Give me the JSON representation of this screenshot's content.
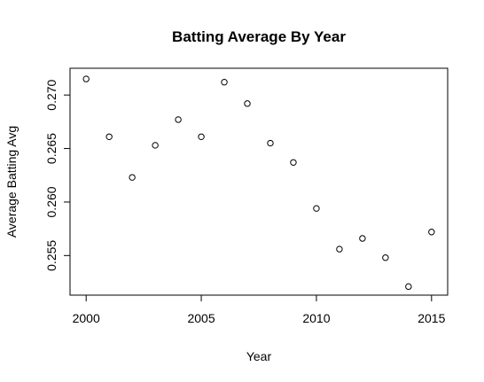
{
  "chart_data": {
    "type": "scatter",
    "title": "Batting Average By Year",
    "xlabel": "Year",
    "ylabel": "Average Batting Avg",
    "xlim": [
      1999.3,
      2015.7
    ],
    "ylim": [
      0.2513,
      0.2725
    ],
    "x_ticks": [
      2000,
      2005,
      2010,
      2015
    ],
    "x_tick_labels": [
      "2000",
      "2005",
      "2010",
      "2015"
    ],
    "y_ticks": [
      0.255,
      0.26,
      0.265,
      0.27
    ],
    "y_tick_labels": [
      "0.255",
      "0.260",
      "0.265",
      "0.270"
    ],
    "grid": false,
    "legend": "none",
    "points": [
      {
        "x": 2000,
        "y": 0.2715
      },
      {
        "x": 2001,
        "y": 0.2661
      },
      {
        "x": 2002,
        "y": 0.2623
      },
      {
        "x": 2003,
        "y": 0.2653
      },
      {
        "x": 2004,
        "y": 0.2677
      },
      {
        "x": 2005,
        "y": 0.2661
      },
      {
        "x": 2006,
        "y": 0.2712
      },
      {
        "x": 2007,
        "y": 0.2692
      },
      {
        "x": 2008,
        "y": 0.2655
      },
      {
        "x": 2009,
        "y": 0.2637
      },
      {
        "x": 2010,
        "y": 0.2594
      },
      {
        "x": 2011,
        "y": 0.2556
      },
      {
        "x": 2012,
        "y": 0.2566
      },
      {
        "x": 2013,
        "y": 0.2548
      },
      {
        "x": 2014,
        "y": 0.2521
      },
      {
        "x": 2015,
        "y": 0.2572
      }
    ]
  }
}
